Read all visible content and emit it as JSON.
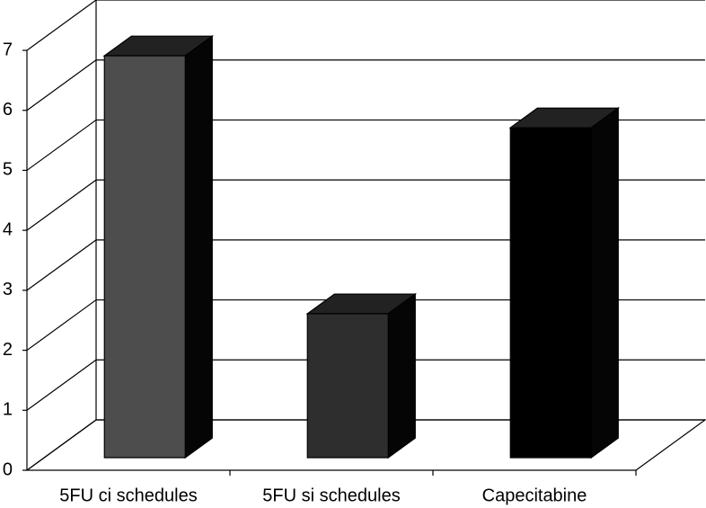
{
  "chart_data": {
    "type": "bar3d",
    "categories": [
      "5FU ci schedules",
      "5FU si schedules",
      "Capecitabine"
    ],
    "values": [
      6.7,
      2.4,
      5.5
    ],
    "colors": [
      "#4d4d4d",
      "#2e2e2e",
      "#000000"
    ],
    "ylim": [
      0,
      7
    ],
    "yticks": [
      0,
      1,
      2,
      3,
      4,
      5,
      6,
      7
    ],
    "grid": true
  }
}
